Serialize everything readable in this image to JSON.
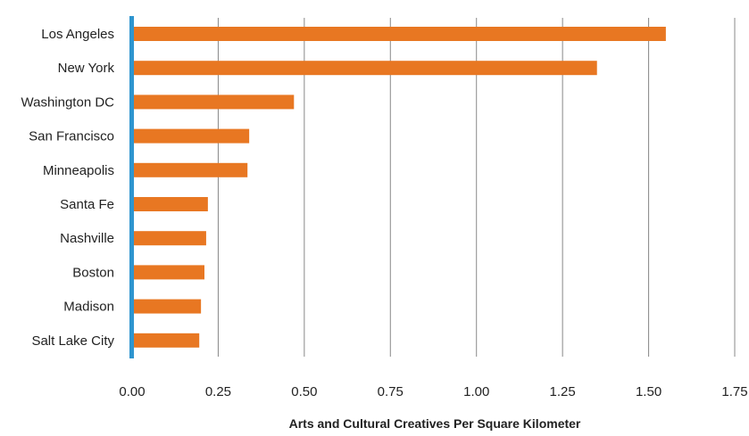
{
  "chart_data": {
    "type": "bar",
    "orientation": "horizontal",
    "title": "",
    "xlabel": "Arts and Cultural Creatives Per Square Kilometer",
    "ylabel": "",
    "xlim": [
      0,
      1.75
    ],
    "x_ticks": [
      "0.00",
      "0.25",
      "0.50",
      "0.75",
      "1.00",
      "1.25",
      "1.50",
      "1.75"
    ],
    "grid": "vertical",
    "legend": "none",
    "categories": [
      "Los Angeles",
      "New York",
      "Washington DC",
      "San Francisco",
      "Minneapolis",
      "Santa Fe",
      "Nashville",
      "Boston",
      "Madison",
      "Salt Lake City"
    ],
    "values": [
      1.55,
      1.35,
      0.47,
      0.34,
      0.335,
      0.22,
      0.215,
      0.21,
      0.2,
      0.195
    ],
    "colors": {
      "bar": "#E87722",
      "axis": "#2E95CF",
      "grid": "#888888"
    }
  }
}
